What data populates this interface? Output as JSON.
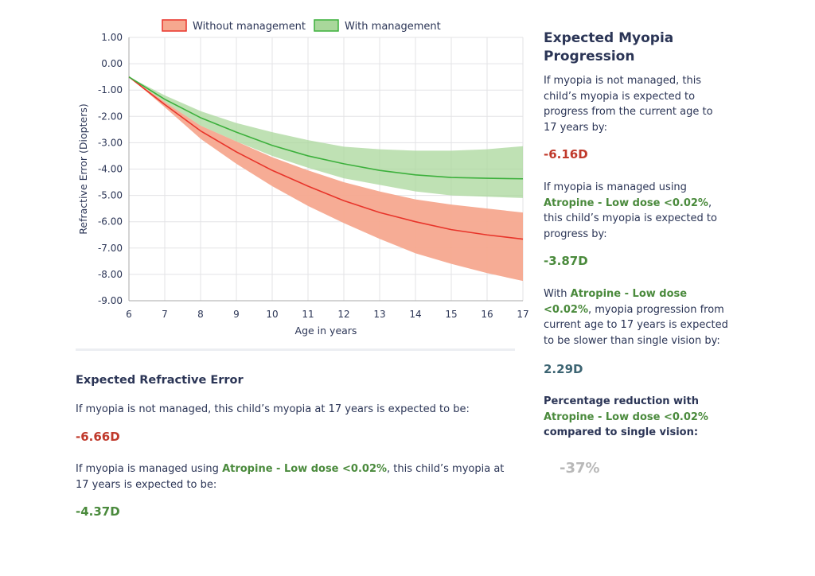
{
  "chart_data": {
    "type": "area",
    "title": "",
    "xlabel": "Age in years",
    "ylabel": "Refractive Error (Diopters)",
    "xlim": [
      6,
      17
    ],
    "ylim": [
      -9,
      1
    ],
    "x": [
      6,
      7,
      8,
      9,
      10,
      11,
      12,
      13,
      14,
      15,
      16,
      17
    ],
    "xticks": [
      "6",
      "7",
      "8",
      "9",
      "10",
      "11",
      "12",
      "13",
      "14",
      "15",
      "16",
      "17"
    ],
    "yticks": [
      "1.00",
      "0.00",
      "-1.00",
      "-2.00",
      "-3.00",
      "-4.00",
      "-5.00",
      "-6.00",
      "-7.00",
      "-8.00",
      "-9.00"
    ],
    "ytick_values": [
      1,
      0,
      -1,
      -2,
      -3,
      -4,
      -5,
      -6,
      -7,
      -8,
      -9
    ],
    "grid": true,
    "legend_position": "top",
    "series": [
      {
        "name": "Without management",
        "color": "#e8342a",
        "fill": "#f6a88f",
        "mean": [
          -0.5,
          -1.55,
          -2.55,
          -3.35,
          -4.05,
          -4.65,
          -5.2,
          -5.65,
          -6.0,
          -6.3,
          -6.5,
          -6.66
        ],
        "upper": [
          -0.5,
          -1.45,
          -2.35,
          -2.95,
          -3.55,
          -4.05,
          -4.5,
          -4.85,
          -5.15,
          -5.35,
          -5.5,
          -5.65
        ],
        "lower": [
          -0.5,
          -1.65,
          -2.85,
          -3.8,
          -4.65,
          -5.4,
          -6.05,
          -6.65,
          -7.2,
          -7.6,
          -7.95,
          -8.25
        ]
      },
      {
        "name": "With management",
        "color": "#3cb03c",
        "fill": "#a9d79b",
        "mean": [
          -0.5,
          -1.35,
          -2.05,
          -2.6,
          -3.1,
          -3.5,
          -3.8,
          -4.05,
          -4.22,
          -4.32,
          -4.35,
          -4.37
        ],
        "upper": [
          -0.5,
          -1.2,
          -1.8,
          -2.25,
          -2.6,
          -2.9,
          -3.15,
          -3.25,
          -3.3,
          -3.3,
          -3.25,
          -3.13
        ],
        "lower": [
          -0.5,
          -1.45,
          -2.35,
          -2.95,
          -3.5,
          -3.95,
          -4.35,
          -4.6,
          -4.85,
          -5.0,
          -5.05,
          -5.1
        ]
      }
    ]
  },
  "refractive": {
    "title": "Expected Refractive Error",
    "not_managed_text": "If myopia is not managed, this child’s myopia at 17 years is expected to be:",
    "not_managed_value": "-6.66D",
    "managed_pre": "If myopia is managed using ",
    "treatment": "Atropine - Low dose <0.02%",
    "managed_post": ", this child’s myopia at 17 years is expected to be:",
    "managed_value": "-4.37D"
  },
  "progression": {
    "title": "Expected Myopia Progression",
    "not_managed_text": "If myopia is not managed, this child’s myopia is expected to progress from the current age to 17 years by:",
    "not_managed_value": "-6.16D",
    "managed_pre": "If myopia is managed using ",
    "treatment": "Atropine - Low dose <0.02%",
    "managed_post": ", this child’s myopia is expected to progress by:",
    "managed_value": "-3.87D",
    "slower_pre": "With ",
    "slower_post": ", myopia progression from current age to 17 years is expected to be slower than single vision by:",
    "slower_value": "2.29D",
    "pct_pre": "Percentage reduction with",
    "pct_post": "compared to single vision:",
    "pct_value": "-37%"
  }
}
